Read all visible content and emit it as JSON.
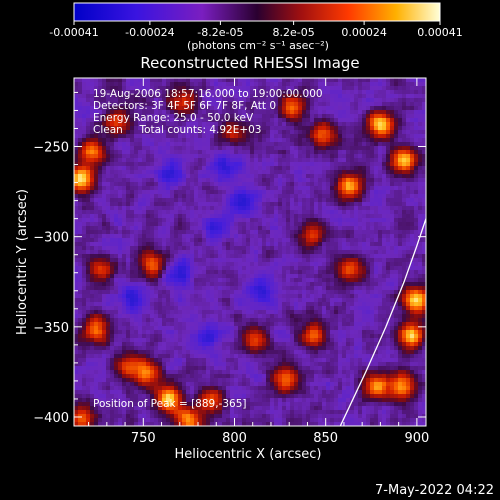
{
  "chart_data": {
    "type": "heatmap",
    "title": "Reconstructed RHESSI Image",
    "xlabel": "Heliocentric X (arcsec)",
    "ylabel": "Heliocentric Y (arcsec)",
    "xlim": [
      712,
      905
    ],
    "ylim": [
      -405,
      -212
    ],
    "xticks": [
      750,
      800,
      850,
      900
    ],
    "yticks": [
      -250,
      -300,
      -350,
      -400
    ],
    "colorbar": {
      "label": "(photons cm⁻² s⁻¹ asec⁻²)",
      "range": [
        -0.00041,
        0.00041
      ],
      "ticks": [
        "-0.00041",
        "-0.00024",
        "-8.2e-05",
        "8.2e-05",
        "0.00024",
        "0.00041"
      ]
    },
    "grid": false,
    "limb_arc": [
      [
        858,
        -405
      ],
      [
        872,
        -375
      ],
      [
        883,
        -350
      ],
      [
        893,
        -325
      ],
      [
        900,
        -305
      ],
      [
        905,
        -290
      ]
    ],
    "annotations": {
      "time_range": "19-Aug-2006 18:57:16.000 to 19:00:00.000",
      "detectors": "Detectors: 3F 4F 5F 6F 7F 8F, Att 0",
      "energy": "Energy Range: 25.0 - 50.0 keV",
      "clean": "Clean     Total counts: 4.92E+03",
      "peak": "Position of Peak = [889,-365]"
    },
    "peak": [
      889,
      -365
    ],
    "hot_spots": [
      [
        880,
        -238,
        1.0
      ],
      [
        893,
        -258,
        0.9
      ],
      [
        900,
        -335,
        1.0
      ],
      [
        897,
        -355,
        0.95
      ],
      [
        878,
        -383,
        0.8
      ],
      [
        892,
        -383,
        0.85
      ],
      [
        863,
        -272,
        0.85
      ],
      [
        848,
        -244,
        0.7
      ],
      [
        832,
        -228,
        0.6
      ],
      [
        843,
        -298,
        0.6
      ],
      [
        863,
        -318,
        0.6
      ],
      [
        716,
        -268,
        0.95
      ],
      [
        722,
        -253,
        0.7
      ],
      [
        764,
        -390,
        0.95
      ],
      [
        752,
        -376,
        0.7
      ],
      [
        775,
        -402,
        0.8
      ],
      [
        787,
        -391,
        0.6
      ],
      [
        724,
        -352,
        0.75
      ],
      [
        742,
        -372,
        0.6
      ],
      [
        755,
        -315,
        0.65
      ],
      [
        800,
        -242,
        0.45
      ],
      [
        812,
        -357,
        0.55
      ],
      [
        828,
        -379,
        0.75
      ],
      [
        843,
        -355,
        0.6
      ],
      [
        771,
        -225,
        0.5
      ],
      [
        716,
        -400,
        0.7
      ],
      [
        727,
        -318,
        0.55
      ],
      [
        736,
        -236,
        0.55
      ]
    ],
    "cold_spots": [
      [
        770,
        -320
      ],
      [
        790,
        -295
      ],
      [
        805,
        -280
      ],
      [
        815,
        -330
      ],
      [
        765,
        -265
      ],
      [
        785,
        -355
      ],
      [
        745,
        -335
      ],
      [
        795,
        -260
      ]
    ]
  },
  "footer": {
    "timestamp": "7-May-2022 04:22"
  }
}
